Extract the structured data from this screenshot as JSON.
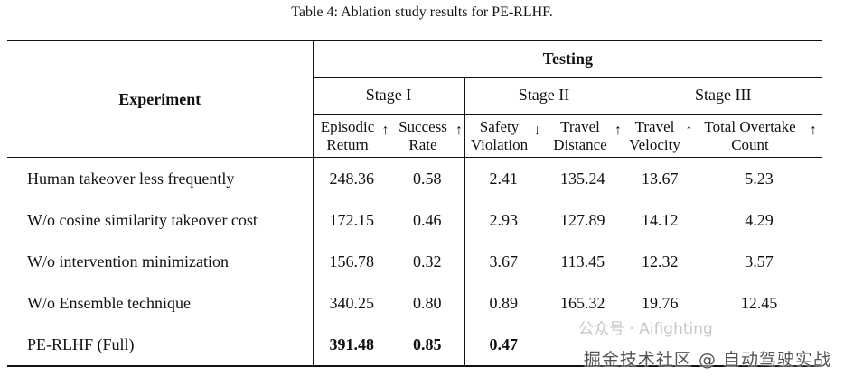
{
  "caption": "Table 4: Ablation study results for PE-RLHF.",
  "header": {
    "experiment": "Experiment",
    "testing": "Testing",
    "stages": [
      "Stage I",
      "Stage II",
      "Stage III"
    ],
    "metrics": [
      {
        "line1": "Episodic",
        "line2": "Return",
        "arrow": "↑"
      },
      {
        "line1": "Success",
        "line2": "Rate",
        "arrow": "↑"
      },
      {
        "line1": "Safety",
        "line2": "Violation",
        "arrow": "↓"
      },
      {
        "line1": "Travel",
        "line2": "Distance",
        "arrow": "↑"
      },
      {
        "line1": "Travel",
        "line2": "Velocity",
        "arrow": "↑"
      },
      {
        "line1": "Total Overtake",
        "line2": "Count",
        "arrow": "↑"
      }
    ]
  },
  "rows": [
    {
      "label": "Human takeover less frequently",
      "values": [
        "248.36",
        "0.58",
        "2.41",
        "135.24",
        "13.67",
        "5.23"
      ],
      "bold": false
    },
    {
      "label": "W/o cosine similarity takeover cost",
      "values": [
        "172.15",
        "0.46",
        "2.93",
        "127.89",
        "14.12",
        "4.29"
      ],
      "bold": false
    },
    {
      "label": "W/o intervention minimization",
      "values": [
        "156.78",
        "0.32",
        "3.67",
        "113.45",
        "12.32",
        "3.57"
      ],
      "bold": false
    },
    {
      "label": "W/o Ensemble technique",
      "values": [
        "340.25",
        "0.80",
        "0.89",
        "165.32",
        "19.76",
        "12.45"
      ],
      "bold": false
    },
    {
      "label": "PE-RLHF (Full)",
      "values": [
        "391.48",
        "0.85",
        "0.47",
        "",
        "",
        ""
      ],
      "bold": true
    }
  ],
  "watermark": "掘金技术社区 @ 自动驾驶实战",
  "watermark_faint": "公众号 · Aifighting"
}
